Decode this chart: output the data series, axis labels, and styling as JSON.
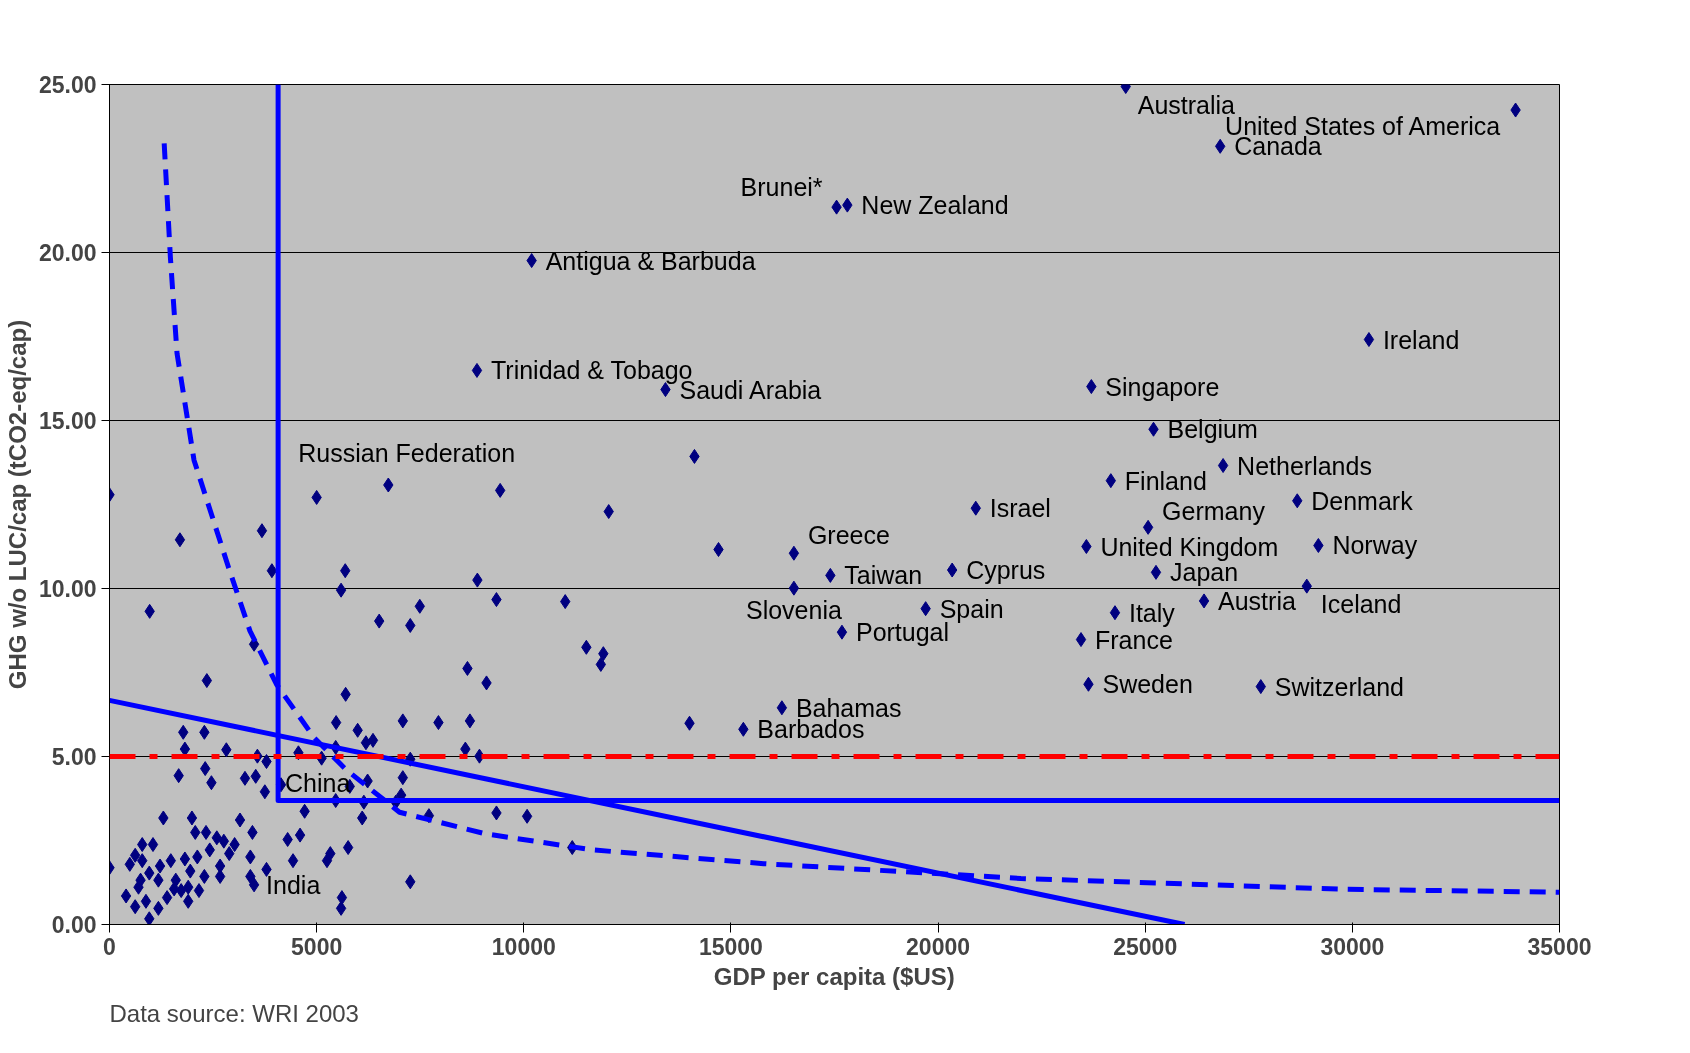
{
  "chart_data": {
    "type": "scatter",
    "xlabel": "GDP per capita ($US)",
    "ylabel": "GHG w/o LUC/cap (tCO2-eq/cap)",
    "xlim": [
      0,
      35000
    ],
    "ylim": [
      0,
      25
    ],
    "xticks": [
      0,
      5000,
      10000,
      15000,
      20000,
      25000,
      30000,
      35000
    ],
    "yticks": [
      {
        "value": 0,
        "label": "0.00"
      },
      {
        "value": 5,
        "label": "5.00"
      },
      {
        "value": 10,
        "label": "10.00"
      },
      {
        "value": 15,
        "label": "15.00"
      },
      {
        "value": 20,
        "label": "20.00"
      },
      {
        "value": 25,
        "label": "25.00"
      }
    ],
    "grid": "y",
    "marker": "diamond",
    "series": [
      {
        "color": "#000080",
        "x": [
          33940,
          24530,
          26810,
          17550,
          17810,
          10190,
          30400,
          8870,
          13420,
          23700,
          25200,
          26880,
          24170,
          28670,
          20910,
          25070,
          23580,
          29180,
          16520,
          17400,
          20340,
          25260,
          28900,
          16520,
          26420,
          19700,
          24270,
          17680,
          23450,
          23630,
          27790,
          16230,
          15300,
          6730,
          4140,
          3490,
          0,
          0,
          1700,
          3680,
          3920,
          5000,
          5690,
          5590,
          970,
          6510,
          7260,
          7490,
          8880,
          9340,
          9430,
          12050,
          14120,
          14700,
          11000,
          11510,
          11920,
          11860,
          3490,
          2350,
          5700,
          8640,
          9100,
          5470,
          5990,
          6360,
          6190,
          7080,
          7940,
          8700,
          8590,
          8930,
          14000,
          1780,
          2290,
          1820,
          2820,
          2310,
          1670,
          2460,
          3570,
          3790,
          3270,
          3530,
          3750,
          4560,
          5120,
          5460,
          7260,
          6230,
          5800,
          7080,
          7040,
          5460,
          6140,
          6910,
          4710,
          6100,
          7710,
          9340,
          10080,
          11170,
          4300,
          4600,
          5760,
          5330,
          5250,
          4430,
          7260,
          5610,
          5590,
          3790,
          3400,
          3450,
          3150,
          3400,
          1300,
          1990,
          2070,
          2330,
          2590,
          2760,
          3020,
          2890,
          2420,
          2120,
          1820,
          1480,
          1220,
          790,
          1050,
          490,
          790,
          960,
          750,
          1180,
          1600,
          1950,
          2670,
          2670,
          2290,
          1560,
          1900,
          2160,
          1900,
          400,
          620,
          880,
          1180,
          960,
          700,
          1390,
          1730,
          620
        ],
        "values": [
          24.24,
          24.94,
          23.16,
          21.35,
          21.41,
          19.76,
          17.41,
          16.49,
          15.92,
          16.01,
          14.74,
          13.66,
          13.21,
          12.61,
          12.39,
          11.82,
          11.25,
          11.28,
          11.05,
          10.39,
          10.55,
          10.48,
          10.07,
          10.01,
          9.63,
          9.4,
          9.28,
          8.7,
          8.48,
          7.15,
          7.08,
          6.45,
          5.81,
          13.08,
          4.16,
          1.18,
          12.79,
          1.69,
          11.45,
          11.72,
          10.53,
          12.71,
          10.53,
          9.95,
          9.32,
          9.03,
          8.9,
          9.47,
          10.25,
          9.67,
          12.92,
          12.29,
          13.93,
          11.16,
          9.61,
          8.25,
          8.06,
          7.74,
          8.34,
          7.26,
          6.85,
          7.62,
          7.19,
          6.01,
          5.78,
          5.48,
          5.41,
          6.06,
          6.01,
          6.06,
          5.22,
          5.01,
          5.99,
          5.72,
          5.72,
          5.22,
          5.2,
          4.64,
          4.43,
          4.22,
          5.01,
          4.85,
          4.35,
          4.41,
          3.95,
          5.11,
          4.95,
          5.27,
          4.92,
          4.27,
          4.11,
          4.37,
          3.85,
          3.69,
          3.64,
          3.64,
          3.37,
          3.17,
          3.24,
          3.32,
          3.22,
          2.29,
          2.53,
          2.66,
          2.29,
          2.11,
          1.9,
          1.9,
          1.27,
          0.8,
          0.48,
          1.64,
          2.01,
          2.74,
          3.11,
          1.43,
          3.17,
          3.17,
          2.74,
          2.74,
          2.58,
          2.48,
          2.38,
          2.11,
          2.22,
          2.01,
          1.95,
          1.9,
          1.74,
          2.38,
          2.38,
          1.79,
          1.9,
          1.53,
          1.32,
          1.32,
          1.32,
          1.59,
          1.74,
          1.43,
          1.43,
          1.06,
          1.11,
          1.01,
          0.69,
          0.85,
          0.53,
          0.69,
          0.48,
          0.17,
          1.11,
          0.8,
          1.01,
          2.06
        ]
      },
      {
        "type": "line",
        "color": "#0000ff",
        "line_style": "solid",
        "marker": "none",
        "x": [
          0,
          25950
        ],
        "values": [
          6.67,
          0
        ]
      },
      {
        "type": "line",
        "color": "#0000ff",
        "line_style": "dashed",
        "marker": "none",
        "x": [
          1320,
          1470,
          1630,
          2040,
          2870,
          3390,
          4030,
          4940,
          5710,
          7000,
          9070,
          11660,
          15790,
          22000,
          29750,
          35000
        ],
        "values": [
          23.25,
          19.85,
          17.0,
          13.82,
          10.64,
          8.74,
          7.15,
          5.56,
          4.61,
          3.34,
          2.7,
          2.22,
          1.81,
          1.37,
          1.05,
          0.96
        ]
      },
      {
        "type": "line",
        "color": "#0000ff",
        "line_style": "solid",
        "marker": "none",
        "x": [
          4070,
          4070,
          35000
        ],
        "values": [
          25,
          3.69,
          3.69
        ]
      }
    ],
    "ref_lines": [
      {
        "axis": "y",
        "value": 5,
        "color": "#ff0000",
        "line_style": "dashed"
      }
    ],
    "annotations": [
      {
        "text": "United States of America",
        "x": 33940,
        "y": 24.24
      },
      {
        "text": "Australia",
        "x": 24530,
        "y": 24.94
      },
      {
        "text": "Canada",
        "x": 26810,
        "y": 23.16
      },
      {
        "text": "Brunei*",
        "x": 17550,
        "y": 21.35
      },
      {
        "text": "New Zealand",
        "x": 17810,
        "y": 21.41
      },
      {
        "text": "Antigua & Barbuda",
        "x": 10190,
        "y": 19.76
      },
      {
        "text": "Ireland",
        "x": 30400,
        "y": 17.41
      },
      {
        "text": "Trinidad & Tobago",
        "x": 8870,
        "y": 16.49
      },
      {
        "text": "Saudi Arabia",
        "x": 13420,
        "y": 15.92
      },
      {
        "text": "Singapore",
        "x": 23700,
        "y": 16.01
      },
      {
        "text": "Belgium",
        "x": 25200,
        "y": 14.74
      },
      {
        "text": "Netherlands",
        "x": 26880,
        "y": 13.66
      },
      {
        "text": "Finland",
        "x": 24170,
        "y": 13.21
      },
      {
        "text": "Denmark",
        "x": 28670,
        "y": 12.61
      },
      {
        "text": "Israel",
        "x": 20910,
        "y": 12.39
      },
      {
        "text": "Germany",
        "x": 25070,
        "y": 11.82
      },
      {
        "text": "United Kingdom",
        "x": 23580,
        "y": 11.25
      },
      {
        "text": "Norway",
        "x": 29180,
        "y": 11.28
      },
      {
        "text": "Greece",
        "x": 16520,
        "y": 11.05
      },
      {
        "text": "Taiwan",
        "x": 17400,
        "y": 10.39
      },
      {
        "text": "Cyprus",
        "x": 20340,
        "y": 10.55
      },
      {
        "text": "Japan",
        "x": 25260,
        "y": 10.48
      },
      {
        "text": "Iceland",
        "x": 28900,
        "y": 10.07
      },
      {
        "text": "Slovenia",
        "x": 16520,
        "y": 10.01
      },
      {
        "text": "Austria",
        "x": 26420,
        "y": 9.63
      },
      {
        "text": "Spain",
        "x": 19700,
        "y": 9.4
      },
      {
        "text": "Italy",
        "x": 24270,
        "y": 9.28
      },
      {
        "text": "Portugal",
        "x": 17680,
        "y": 8.7
      },
      {
        "text": "France",
        "x": 23450,
        "y": 8.48
      },
      {
        "text": "Sweden",
        "x": 23630,
        "y": 7.15
      },
      {
        "text": "Switzerland",
        "x": 27790,
        "y": 7.08
      },
      {
        "text": "Bahamas",
        "x": 16230,
        "y": 6.45
      },
      {
        "text": "Barbados",
        "x": 15300,
        "y": 5.81
      },
      {
        "text": "Russian Federation",
        "x": 6730,
        "y": 13.08
      },
      {
        "text": "China",
        "x": 4140,
        "y": 4.16
      },
      {
        "text": "India",
        "x": 3490,
        "y": 1.18
      },
      "Data source: WRI 2003"
    ]
  }
}
